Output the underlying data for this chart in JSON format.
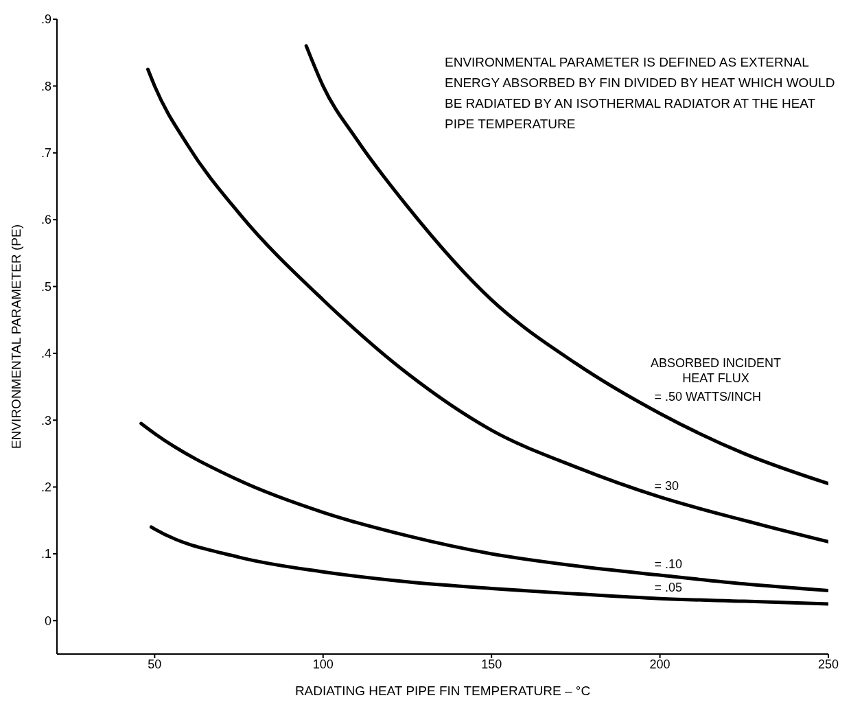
{
  "chart_data": {
    "type": "line",
    "xlabel": "RADIATING HEAT PIPE FIN TEMPERATURE – °C",
    "ylabel": "ENVIRONMENTAL PARAMETER (PE)",
    "annotations": [
      "ENVIRONMENTAL PARAMETER IS DEFINED AS EXTERNAL ENERGY ABSORBED BY FIN DIVIDED BY HEAT WHICH WOULD BE RADIATED BY AN ISOTHERMAL RADIATOR AT THE HEAT PIPE TEMPERATURE",
      "ABSORBED INCIDENT HEAT FLUX"
    ],
    "xlim": [
      21,
      250
    ],
    "xticks": [
      50,
      100,
      150,
      200,
      250
    ],
    "ylim": [
      -0.05,
      0.9
    ],
    "yticks": [
      {
        "value": 0,
        "label": "0"
      },
      {
        "value": 0.1,
        "label": ".1"
      },
      {
        "value": 0.2,
        "label": ".2"
      },
      {
        "value": 0.3,
        "label": ".3"
      },
      {
        "value": 0.4,
        "label": ".4"
      },
      {
        "value": 0.5,
        "label": ".5"
      },
      {
        "value": 0.6,
        "label": ".6"
      },
      {
        "value": 0.7,
        "label": ".7"
      },
      {
        "value": 0.8,
        "label": ".8"
      },
      {
        "value": 0.9,
        "label": ".9"
      }
    ],
    "grid": false,
    "legend": false,
    "marker": "none",
    "line_style": "solid",
    "series": [
      {
        "name": "= .50 WATTS/INCH",
        "color": "#000000",
        "x": [
          95,
          100,
          110,
          125,
          150,
          175,
          200,
          225,
          250
        ],
        "values": [
          0.86,
          0.8,
          0.72,
          0.62,
          0.48,
          0.385,
          0.31,
          0.25,
          0.205
        ]
      },
      {
        "name": "= 30",
        "color": "#000000",
        "x": [
          48,
          50,
          60,
          75,
          100,
          125,
          150,
          175,
          200,
          225,
          250
        ],
        "values": [
          0.825,
          0.8,
          0.71,
          0.61,
          0.48,
          0.37,
          0.285,
          0.23,
          0.185,
          0.15,
          0.118
        ]
      },
      {
        "name": "= .10",
        "color": "#000000",
        "x": [
          46,
          50,
          75,
          100,
          125,
          150,
          175,
          200,
          225,
          250
        ],
        "values": [
          0.295,
          0.28,
          0.21,
          0.162,
          0.127,
          0.1,
          0.082,
          0.068,
          0.055,
          0.045
        ]
      },
      {
        "name": "= .05",
        "color": "#000000",
        "x": [
          49,
          50,
          75,
          100,
          125,
          150,
          175,
          200,
          225,
          250
        ],
        "values": [
          0.14,
          0.137,
          0.095,
          0.073,
          0.058,
          0.048,
          0.04,
          0.033,
          0.029,
          0.025
        ]
      }
    ]
  }
}
